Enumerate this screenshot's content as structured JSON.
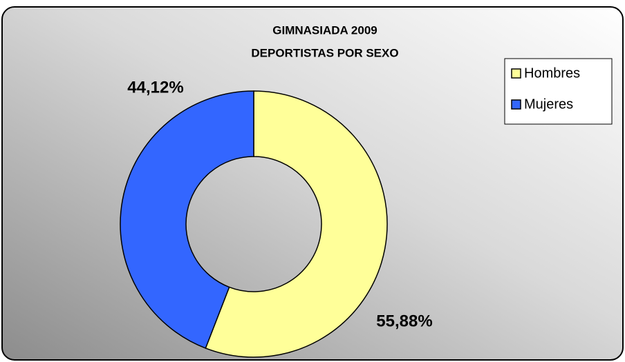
{
  "chart_data": {
    "type": "donut",
    "title": "GIMNASIADA 2009",
    "subtitle": "DEPORTISTAS POR SEXO",
    "categories": [
      "Hombres",
      "Mujeres"
    ],
    "values": [
      55.88,
      44.12
    ],
    "value_labels": [
      "55,88%",
      "44,12%"
    ],
    "colors": [
      "#ffff99",
      "#3366ff"
    ],
    "legend": "upper right"
  }
}
